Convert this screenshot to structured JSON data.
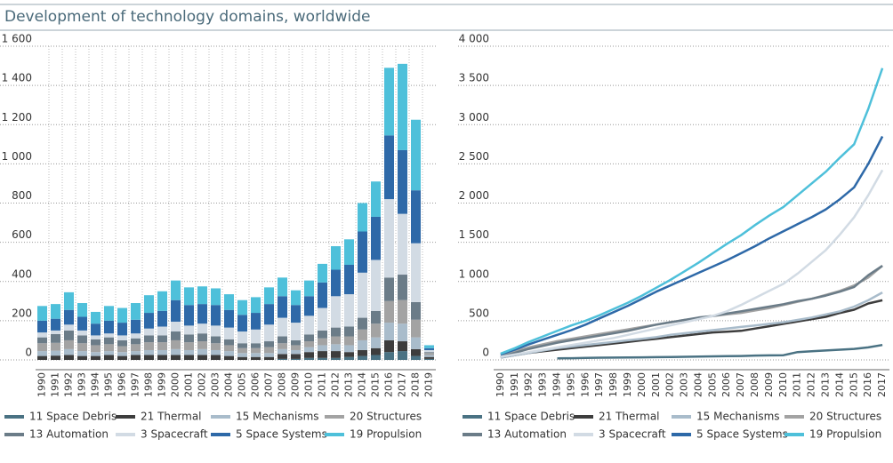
{
  "title": "Development of technology domains, worldwide",
  "chart_data": [
    {
      "type": "stacked_bar",
      "categories": [
        "1990",
        "1991",
        "1992",
        "1993",
        "1994",
        "1995",
        "1996",
        "1997",
        "1998",
        "1999",
        "2000",
        "2001",
        "2002",
        "2003",
        "2004",
        "2005",
        "2006",
        "2007",
        "2008",
        "2009",
        "2010",
        "2011",
        "2012",
        "2013",
        "2014",
        "2015",
        "2016",
        "2017",
        "2018",
        "2019"
      ],
      "series": [
        {
          "name": "11 Space Debris",
          "color": "#4a7283",
          "values": [
            0,
            0,
            0,
            0,
            0,
            0,
            0,
            0,
            0,
            0,
            0,
            0,
            0,
            0,
            0,
            0,
            0,
            0,
            5,
            5,
            10,
            10,
            10,
            15,
            20,
            25,
            40,
            45,
            20,
            5
          ]
        },
        {
          "name": "21 Thermal",
          "color": "#3d3d3d",
          "values": [
            20,
            22,
            25,
            20,
            20,
            25,
            20,
            25,
            25,
            25,
            25,
            25,
            25,
            25,
            20,
            15,
            15,
            15,
            25,
            25,
            30,
            35,
            35,
            25,
            30,
            35,
            60,
            50,
            35,
            10
          ]
        },
        {
          "name": "15 Mechanisms",
          "color": "#a9bccb",
          "values": [
            25,
            25,
            30,
            25,
            20,
            20,
            20,
            20,
            25,
            25,
            30,
            25,
            30,
            25,
            25,
            20,
            20,
            20,
            25,
            20,
            25,
            30,
            35,
            35,
            50,
            55,
            90,
            90,
            60,
            10
          ]
        },
        {
          "name": "20 Structures",
          "color": "#a3a3a3",
          "values": [
            40,
            40,
            45,
            40,
            35,
            35,
            30,
            35,
            40,
            40,
            45,
            40,
            40,
            35,
            30,
            25,
            25,
            30,
            30,
            25,
            30,
            35,
            40,
            45,
            55,
            70,
            110,
            120,
            90,
            10
          ]
        },
        {
          "name": "13 Automation",
          "color": "#6b7c88",
          "values": [
            30,
            45,
            50,
            40,
            30,
            35,
            30,
            30,
            35,
            35,
            45,
            40,
            40,
            35,
            30,
            25,
            25,
            30,
            35,
            25,
            35,
            40,
            45,
            50,
            60,
            65,
            120,
            130,
            90,
            5
          ]
        },
        {
          "name": "3 Spacecraft",
          "color": "#d2dbe4",
          "values": [
            25,
            18,
            30,
            25,
            20,
            20,
            25,
            25,
            35,
            45,
            50,
            45,
            50,
            55,
            60,
            60,
            70,
            85,
            95,
            90,
            95,
            115,
            160,
            165,
            230,
            260,
            400,
            310,
            300,
            10
          ]
        },
        {
          "name": "5 Space Systems",
          "color": "#2e69a8",
          "values": [
            60,
            60,
            75,
            70,
            60,
            65,
            65,
            70,
            80,
            80,
            110,
            105,
            100,
            105,
            90,
            85,
            85,
            105,
            110,
            90,
            100,
            130,
            135,
            150,
            210,
            220,
            325,
            325,
            270,
            10
          ]
        },
        {
          "name": "19 Propulsion",
          "color": "#4ec0da",
          "values": [
            75,
            75,
            90,
            70,
            60,
            75,
            75,
            85,
            90,
            100,
            100,
            90,
            90,
            85,
            80,
            75,
            80,
            85,
            95,
            75,
            80,
            95,
            120,
            130,
            145,
            180,
            345,
            440,
            360,
            15
          ]
        }
      ],
      "ylim": [
        0,
        1600
      ],
      "yticks": [
        0,
        200,
        400,
        600,
        800,
        {
          "value": 1000,
          "label": "1 000"
        },
        {
          "value": 1200,
          "label": "1 200"
        },
        {
          "value": 1400,
          "label": "1 400"
        },
        {
          "value": 1600,
          "label": "1 600"
        }
      ],
      "grid": true
    },
    {
      "type": "line",
      "categories": [
        "1990",
        "1991",
        "1992",
        "1993",
        "1994",
        "1995",
        "1996",
        "1997",
        "1998",
        "1999",
        "2000",
        "2001",
        "2002",
        "2003",
        "2004",
        "2005",
        "2006",
        "2007",
        "2008",
        "2009",
        "2010",
        "2011",
        "2012",
        "2013",
        "2014",
        "2015",
        "2016",
        "2017"
      ],
      "series": [
        {
          "name": "11 Space Debris",
          "color": "#4a7283",
          "values": [
            null,
            null,
            null,
            null,
            20,
            22,
            25,
            28,
            30,
            32,
            33,
            35,
            37,
            40,
            42,
            45,
            48,
            50,
            55,
            58,
            60,
            100,
            110,
            120,
            130,
            140,
            160,
            190
          ]
        },
        {
          "name": "21 Thermal",
          "color": "#3d3d3d",
          "values": [
            30,
            60,
            90,
            110,
            130,
            150,
            170,
            190,
            210,
            230,
            250,
            270,
            290,
            310,
            330,
            350,
            360,
            370,
            400,
            430,
            460,
            490,
            520,
            550,
            600,
            640,
            720,
            760
          ]
        },
        {
          "name": "15 Mechanisms",
          "color": "#a9bccb",
          "values": [
            30,
            60,
            90,
            120,
            150,
            170,
            190,
            210,
            230,
            250,
            270,
            290,
            320,
            340,
            360,
            380,
            400,
            420,
            440,
            460,
            480,
            510,
            540,
            580,
            620,
            680,
            760,
            860
          ]
        },
        {
          "name": "20 Structures",
          "color": "#a3a3a3",
          "values": [
            60,
            110,
            160,
            200,
            240,
            270,
            300,
            330,
            360,
            390,
            420,
            450,
            480,
            510,
            530,
            560,
            580,
            600,
            630,
            660,
            700,
            740,
            780,
            830,
            880,
            950,
            1050,
            1200
          ]
        },
        {
          "name": "13 Automation",
          "color": "#6b7c88",
          "values": [
            40,
            90,
            140,
            180,
            220,
            250,
            280,
            310,
            340,
            370,
            410,
            450,
            480,
            510,
            540,
            560,
            590,
            620,
            650,
            680,
            710,
            750,
            780,
            820,
            870,
            930,
            1080,
            1200
          ]
        },
        {
          "name": "3 Spacecraft",
          "color": "#d2dbe4",
          "values": [
            40,
            70,
            100,
            130,
            160,
            190,
            220,
            250,
            280,
            320,
            360,
            400,
            440,
            480,
            520,
            560,
            620,
            700,
            790,
            880,
            970,
            1100,
            1250,
            1400,
            1600,
            1820,
            2100,
            2420
          ]
        },
        {
          "name": "5 Space Systems",
          "color": "#2e69a8",
          "values": [
            70,
            130,
            200,
            260,
            320,
            380,
            450,
            530,
            610,
            690,
            780,
            870,
            950,
            1030,
            1110,
            1190,
            1270,
            1360,
            1450,
            1550,
            1640,
            1730,
            1820,
            1920,
            2050,
            2200,
            2500,
            2850
          ]
        },
        {
          "name": "19 Propulsion",
          "color": "#4ec0da",
          "values": [
            80,
            150,
            230,
            300,
            370,
            440,
            500,
            570,
            650,
            730,
            820,
            920,
            1020,
            1130,
            1240,
            1360,
            1480,
            1590,
            1720,
            1840,
            1950,
            2100,
            2250,
            2400,
            2580,
            2750,
            3200,
            3720
          ]
        }
      ],
      "ylim": [
        0,
        4000
      ],
      "yticks": [
        0,
        500,
        {
          "value": 1000,
          "label": "1 000"
        },
        {
          "value": 1500,
          "label": "1 500"
        },
        {
          "value": 2000,
          "label": "2 000"
        },
        {
          "value": 2500,
          "label": "2 500"
        },
        {
          "value": 3000,
          "label": "3 000"
        },
        {
          "value": 3500,
          "label": "3 500"
        },
        {
          "value": 4000,
          "label": "4 000"
        }
      ],
      "grid": true
    }
  ]
}
